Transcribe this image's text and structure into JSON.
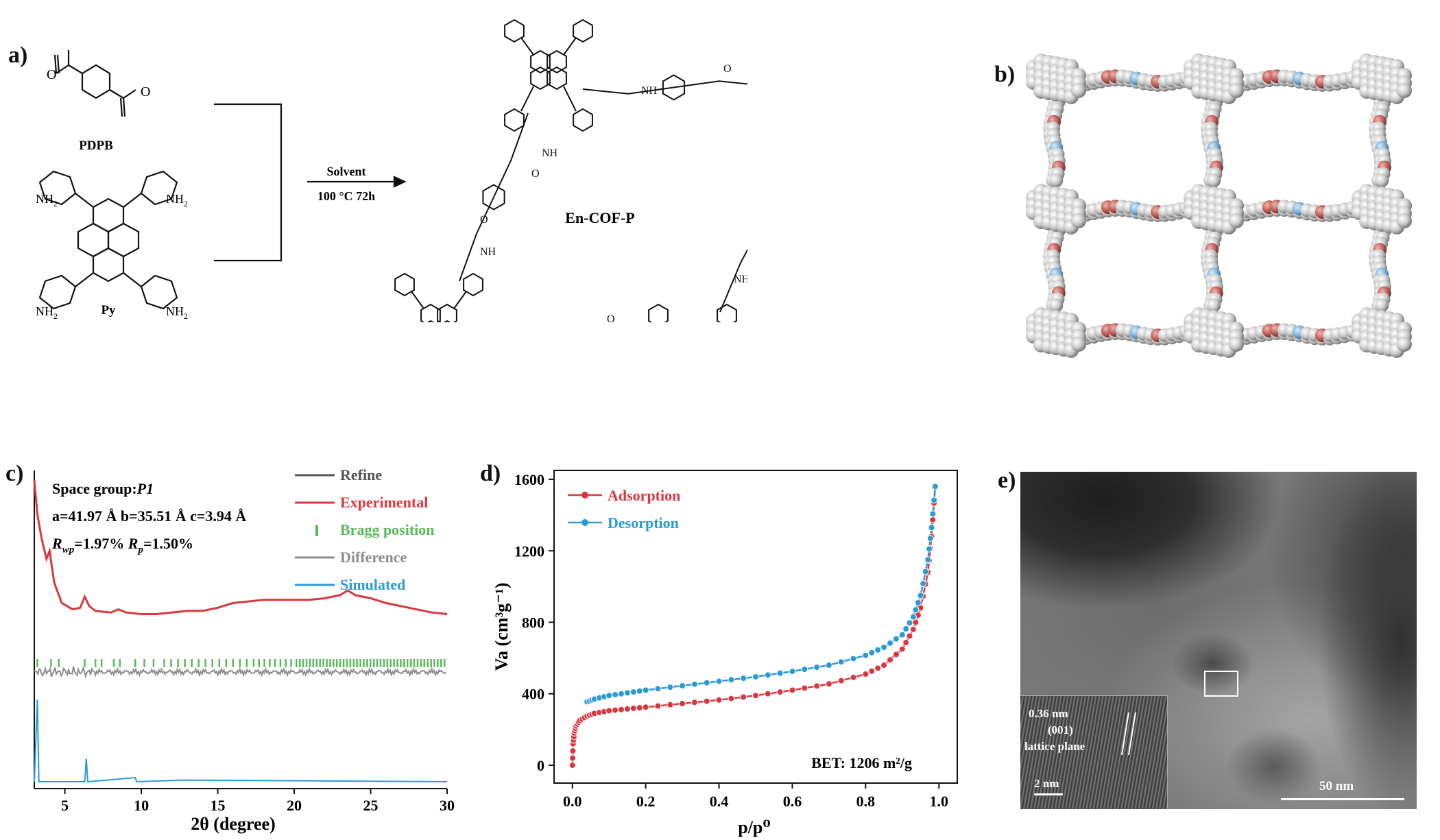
{
  "panels": {
    "a": {
      "label": "a)",
      "reactant1": "PDPB",
      "reactant2": "Py",
      "condition_top": "Solvent",
      "condition_bottom": "100 °C 72h",
      "product": "En-COF-P",
      "amine_label": "NH",
      "carbonyl_label": "O",
      "nh2": "NH",
      "sub2": "2"
    },
    "b": {
      "label": "b)"
    },
    "c": {
      "label": "c)",
      "space_group_prefix": "Space group:",
      "space_group": "P1",
      "cell": "a=41.97 Å b=35.51 Å c=3.94 Å",
      "rwp_symbol": "R",
      "rwp_sub": "wp",
      "rwp_value": "=1.97%",
      "rp_symbol": "R",
      "rp_sub": "p",
      "rp_value": "=1.50%",
      "legend": [
        {
          "name": "Refine",
          "color": "#555555"
        },
        {
          "name": "Experimental",
          "color": "#d9373d"
        },
        {
          "name": "Bragg position",
          "color": "#5cb85c"
        },
        {
          "name": "Difference",
          "color": "#8c8c8c"
        },
        {
          "name": "Simulated",
          "color": "#2a9bd6"
        }
      ],
      "xlabel": "2θ (degree)",
      "xticks": [
        "5",
        "10",
        "15",
        "20",
        "25",
        "30"
      ]
    },
    "d": {
      "label": "d)",
      "ylabel": "Va (cm³g⁻¹)",
      "xlabel": "p/p⁰",
      "bet_text": "BET: 1206 m²/g",
      "legend": [
        {
          "name": "Adsorption",
          "color": "#d9373d"
        },
        {
          "name": "Desorption",
          "color": "#2a9bd6"
        }
      ]
    },
    "e": {
      "label": "e)",
      "inset_spacing": "0.36 nm",
      "inset_plane": "(001)",
      "inset_text": "lattice plane",
      "inset_scale": "2 nm",
      "scale": "50 nm"
    }
  },
  "chart_data": [
    {
      "type": "line",
      "panel": "c",
      "xlabel": "2θ (degree)",
      "xlim": [
        3,
        30
      ],
      "series": [
        {
          "name": "Experimental",
          "x": [
            3.0,
            3.2,
            3.5,
            3.8,
            4.0,
            4.3,
            4.8,
            5.5,
            6.0,
            6.3,
            6.6,
            7.0,
            8.0,
            8.5,
            9.0,
            10.0,
            11.0,
            12.0,
            13.0,
            14.0,
            15.0,
            16.0,
            17.0,
            18.0,
            19.0,
            20.0,
            21.0,
            22.0,
            23.0,
            23.5,
            24.0,
            25.0,
            26.0,
            27.0,
            28.0,
            29.0,
            30.0
          ],
          "y": [
            1.0,
            0.78,
            0.62,
            0.5,
            0.55,
            0.35,
            0.22,
            0.18,
            0.19,
            0.26,
            0.2,
            0.17,
            0.16,
            0.18,
            0.16,
            0.15,
            0.15,
            0.16,
            0.17,
            0.17,
            0.19,
            0.22,
            0.23,
            0.24,
            0.24,
            0.24,
            0.24,
            0.25,
            0.27,
            0.3,
            0.27,
            0.25,
            0.22,
            0.2,
            0.18,
            0.16,
            0.15
          ]
        },
        {
          "name": "Simulated",
          "x": [
            3.0,
            3.2,
            3.3,
            3.5,
            6.3,
            6.4,
            6.5,
            9.6,
            9.7,
            12.8,
            30.0
          ],
          "y": [
            0.0,
            1.0,
            0.0,
            0.0,
            0.0,
            0.28,
            0.0,
            0.05,
            0.0,
            0.02,
            0.0
          ]
        }
      ]
    },
    {
      "type": "line",
      "panel": "d",
      "xlabel": "p/p⁰",
      "ylabel": "Va (cm³g⁻¹)",
      "xlim": [
        -0.05,
        1.05
      ],
      "ylim": [
        -100,
        1650
      ],
      "xticks": [
        0.0,
        0.2,
        0.4,
        0.6,
        0.8,
        1.0
      ],
      "yticks": [
        0,
        400,
        800,
        1200,
        1600
      ],
      "series": [
        {
          "name": "Adsorption",
          "x": [
            0.0,
            0.002,
            0.005,
            0.01,
            0.02,
            0.04,
            0.06,
            0.1,
            0.15,
            0.2,
            0.3,
            0.4,
            0.5,
            0.6,
            0.7,
            0.8,
            0.85,
            0.9,
            0.93,
            0.95,
            0.97,
            0.98,
            0.99
          ],
          "y": [
            0,
            120,
            180,
            220,
            250,
            275,
            290,
            305,
            315,
            325,
            345,
            365,
            390,
            420,
            455,
            510,
            560,
            650,
            760,
            880,
            1080,
            1280,
            1560
          ]
        },
        {
          "name": "Desorption",
          "x": [
            0.04,
            0.06,
            0.1,
            0.15,
            0.2,
            0.3,
            0.4,
            0.5,
            0.6,
            0.7,
            0.8,
            0.85,
            0.9,
            0.93,
            0.95,
            0.97,
            0.98,
            0.99
          ],
          "y": [
            355,
            370,
            390,
            405,
            420,
            445,
            470,
            495,
            525,
            560,
            615,
            660,
            730,
            830,
            950,
            1150,
            1330,
            1560
          ]
        }
      ]
    }
  ]
}
